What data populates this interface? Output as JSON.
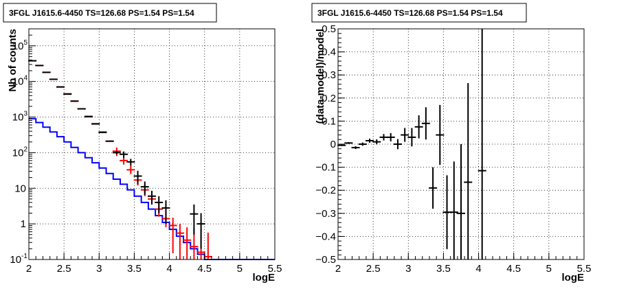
{
  "chart_data": [
    {
      "type": "line",
      "title": "3FGL J1615.6-4450 TS=126.68 PS=1.54 PS=1.54",
      "xlabel": "logE",
      "ylabel": "Nb of counts",
      "xlim": [
        2,
        5.5
      ],
      "ylim": [
        0.1,
        300000
      ],
      "yscale": "log",
      "grid": true,
      "x_ticks": [
        "2",
        "2.5",
        "3",
        "3.5",
        "4",
        "4.5",
        "5",
        "5.5"
      ],
      "y_ticks": [
        {
          "base": "10",
          "exp": "-1",
          "value": 0.1
        },
        {
          "base": "1",
          "exp": "",
          "value": 1
        },
        {
          "base": "10",
          "exp": "",
          "value": 10
        },
        {
          "base": "10",
          "exp": "2",
          "value": 100
        },
        {
          "base": "10",
          "exp": "3",
          "value": 1000
        },
        {
          "base": "10",
          "exp": "4",
          "value": 10000
        },
        {
          "base": "10",
          "exp": "5",
          "value": 100000
        }
      ],
      "colors": {
        "model": "#ff0000",
        "data": "#000000",
        "background": "#0000ff"
      },
      "bin_edges": [
        2.0,
        2.1,
        2.2,
        2.3,
        2.4,
        2.5,
        2.6,
        2.7,
        2.8,
        2.9,
        3.0,
        3.1,
        3.2,
        3.3,
        3.4,
        3.5,
        3.6,
        3.7,
        3.8,
        3.9,
        4.0,
        4.1,
        4.2,
        4.3,
        4.4,
        4.5,
        4.6,
        4.7,
        4.8,
        4.9,
        5.0,
        5.1,
        5.2,
        5.3,
        5.4,
        5.5
      ],
      "series": [
        {
          "role": "model",
          "x": [
            2.05,
            2.15,
            2.25,
            2.35,
            2.45,
            2.55,
            2.65,
            2.75,
            2.85,
            2.95,
            3.05,
            3.15,
            3.25,
            3.35,
            3.45,
            3.55,
            3.65,
            3.75,
            3.85,
            3.95,
            4.05,
            4.15,
            4.25,
            4.35,
            4.45,
            4.55
          ],
          "y": [
            38000,
            28000,
            18000,
            11500,
            7000,
            4500,
            2800,
            1700,
            1050,
            650,
            380,
            210,
            110,
            60,
            33,
            17,
            9,
            5,
            2.6,
            1.4,
            0.9,
            0.55,
            0.35,
            0.23,
            0.16,
            0.12
          ],
          "yerr_lo": [
            0,
            0,
            0,
            0,
            0,
            0,
            0,
            0,
            0,
            0,
            0,
            0,
            30,
            14,
            8,
            5,
            3,
            1.5,
            1.0,
            0.6,
            0.75,
            0.45,
            0.25,
            0.13,
            0.06,
            0.02
          ],
          "yerr_hi": [
            0,
            0,
            0,
            0,
            0,
            0,
            0,
            0,
            0,
            0,
            0,
            0,
            30,
            18,
            10,
            7,
            4,
            2.5,
            1.6,
            1.0,
            0.6,
            0.45,
            0.45,
            0.5,
            0.55,
            0.45
          ]
        },
        {
          "role": "data",
          "x": [
            2.05,
            2.15,
            2.25,
            2.35,
            2.45,
            2.55,
            2.65,
            2.75,
            2.85,
            2.95,
            3.05,
            3.15,
            3.25,
            3.35,
            3.45,
            3.55,
            3.65,
            3.75,
            3.85,
            3.95,
            4.35,
            4.45
          ],
          "y": [
            38000,
            28000,
            18000,
            11500,
            7000,
            4400,
            2800,
            1700,
            1020,
            640,
            370,
            210,
            100,
            90,
            55,
            22,
            11,
            6,
            4,
            2.8,
            1.9,
            1.0
          ],
          "yerr_lo": [
            0,
            0,
            0,
            0,
            0,
            0,
            0,
            0,
            0,
            0,
            0,
            0,
            10,
            18,
            12,
            9,
            4.5,
            2.5,
            2.0,
            1.8,
            1.4,
            0.8
          ],
          "yerr_hi": [
            0,
            0,
            0,
            0,
            0,
            0,
            0,
            0,
            0,
            0,
            0,
            0,
            10,
            18,
            12,
            9,
            4.5,
            2.5,
            2.0,
            1.8,
            1.6,
            1.0
          ]
        },
        {
          "role": "background",
          "y": [
            900,
            700,
            520,
            380,
            280,
            200,
            140,
            100,
            72,
            52,
            37,
            26,
            18,
            13,
            9,
            6,
            4,
            2.6,
            1.7,
            1.1,
            0.7,
            0.45,
            0.3,
            0.2,
            0.14,
            0.1,
            0.1,
            0.1,
            0.1,
            0.1,
            0.1,
            0.1,
            0.1,
            0.1,
            0.1
          ]
        }
      ]
    },
    {
      "type": "scatter",
      "title": "3FGL J1615.6-4450 TS=126.68 PS=1.54 PS=1.54",
      "xlabel": "logE",
      "ylabel": "(data-model)/model",
      "xlim": [
        2,
        5.5
      ],
      "ylim": [
        -0.5,
        0.5
      ],
      "grid": true,
      "x_ticks": [
        "2",
        "2.5",
        "3",
        "3.5",
        "4",
        "4.5",
        "5",
        "5.5"
      ],
      "y_ticks": [
        "0.5",
        "0.4",
        "0.3",
        "0.2",
        "0.1",
        "0",
        "−0.1",
        "−0.2",
        "−0.3",
        "−0.4",
        "−0.5"
      ],
      "y_tick_values": [
        0.5,
        0.4,
        0.3,
        0.2,
        0.1,
        0,
        -0.1,
        -0.2,
        -0.3,
        -0.4,
        -0.5
      ],
      "points": [
        {
          "x": 2.05,
          "y": -0.005,
          "err": 0.003
        },
        {
          "x": 2.15,
          "y": 0.005,
          "err": 0.004
        },
        {
          "x": 2.25,
          "y": -0.015,
          "err": 0.006
        },
        {
          "x": 2.35,
          "y": 0.0,
          "err": 0.007
        },
        {
          "x": 2.45,
          "y": 0.015,
          "err": 0.009
        },
        {
          "x": 2.55,
          "y": 0.01,
          "err": 0.011
        },
        {
          "x": 2.65,
          "y": 0.03,
          "err": 0.014
        },
        {
          "x": 2.75,
          "y": 0.03,
          "err": 0.018
        },
        {
          "x": 2.85,
          "y": 0.0,
          "err": 0.022
        },
        {
          "x": 2.95,
          "y": 0.04,
          "err": 0.03
        },
        {
          "x": 3.05,
          "y": 0.03,
          "err": 0.04
        },
        {
          "x": 3.15,
          "y": 0.075,
          "err": 0.05
        },
        {
          "x": 3.25,
          "y": 0.09,
          "err": 0.07
        },
        {
          "x": 3.35,
          "y": -0.19,
          "err": 0.09
        },
        {
          "x": 3.45,
          "y": 0.04,
          "err": 0.13
        },
        {
          "x": 3.55,
          "y": -0.295,
          "err": 0.16
        },
        {
          "x": 3.65,
          "y": -0.295,
          "err": 0.22
        },
        {
          "x": 3.75,
          "y": -0.3,
          "err": 0.3
        },
        {
          "x": 3.85,
          "y": -0.165,
          "err": 0.43
        },
        {
          "x": 4.05,
          "y": -0.115,
          "err": 0.7
        }
      ]
    }
  ]
}
